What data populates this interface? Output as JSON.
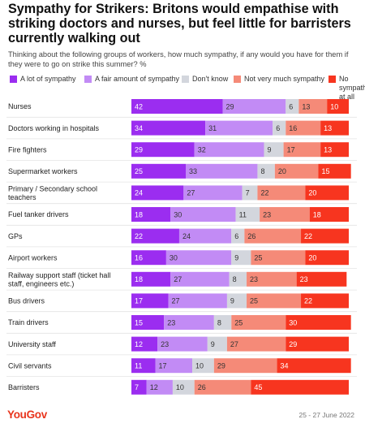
{
  "title": "Sympathy for Strikers: Britons would empathise with striking doctors and nurses, but feel little for barristers currently walking out",
  "subtitle": "Thinking about the following groups of workers, how much sympathy, if any would you have for them if they were to go on strike this summer? %",
  "brand": "YouGov",
  "date": "25 - 27 June 2022",
  "legend": [
    {
      "label": "A lot of sympathy",
      "color": "#9b2df0"
    },
    {
      "label": "A fair amount of sympathy",
      "color": "#c28bf5"
    },
    {
      "label": "Don't know",
      "color": "#d3d6dd"
    },
    {
      "label": "Not very much sympathy",
      "color": "#f58a78"
    },
    {
      "label": "No sympathy at all",
      "color": "#f7351f"
    }
  ],
  "chart_data": {
    "type": "bar",
    "stacked": true,
    "orientation": "horizontal",
    "unit": "%",
    "categories": [
      "Nurses",
      "Doctors working in hospitals",
      "Fire fighters",
      "Supermarket workers",
      "Primary / Secondary school teachers",
      "Fuel tanker drivers",
      "GPs",
      "Airport workers",
      "Railway support staff (ticket hall staff, engineers etc.)",
      "Bus drivers",
      "Train drivers",
      "University staff",
      "Civil servants",
      "Barristers"
    ],
    "series": [
      {
        "name": "A lot of sympathy",
        "color": "#9b2df0",
        "values": [
          42,
          34,
          29,
          25,
          24,
          18,
          22,
          16,
          18,
          17,
          15,
          12,
          11,
          7
        ]
      },
      {
        "name": "A fair amount of sympathy",
        "color": "#c28bf5",
        "values": [
          29,
          31,
          32,
          33,
          27,
          30,
          24,
          30,
          27,
          27,
          23,
          23,
          17,
          12
        ]
      },
      {
        "name": "Don't know",
        "color": "#d3d6dd",
        "values": [
          6,
          6,
          9,
          8,
          7,
          11,
          6,
          9,
          8,
          9,
          8,
          9,
          10,
          10
        ]
      },
      {
        "name": "Not very much sympathy",
        "color": "#f58a78",
        "values": [
          13,
          16,
          17,
          20,
          22,
          23,
          26,
          25,
          23,
          25,
          25,
          27,
          29,
          26
        ]
      },
      {
        "name": "No sympathy at all",
        "color": "#f7351f",
        "values": [
          10,
          13,
          13,
          15,
          20,
          18,
          22,
          20,
          23,
          22,
          30,
          29,
          34,
          45
        ]
      }
    ]
  }
}
